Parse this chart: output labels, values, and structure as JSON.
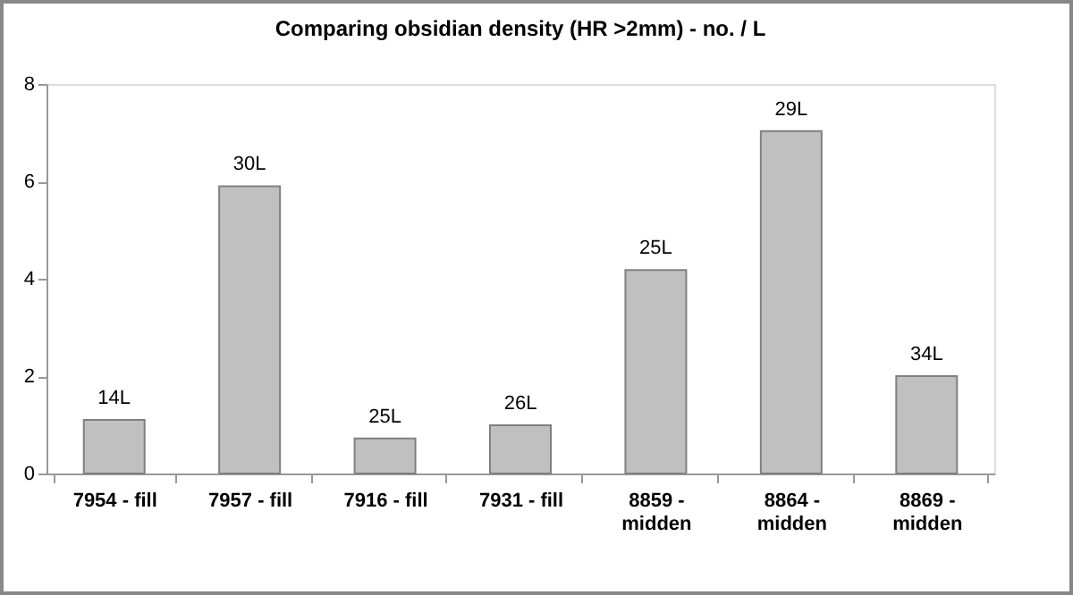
{
  "chart_data": {
    "type": "bar",
    "title": "Comparing obsidian density (HR >2mm) - no. / L",
    "categories": [
      "7954 - fill",
      "7957 - fill",
      "7916 - fill",
      "7931 - fill",
      "8859 - midden",
      "8864 - midden",
      "8869 - midden"
    ],
    "values": [
      1.1,
      5.9,
      0.72,
      0.99,
      4.18,
      7.03,
      2.0
    ],
    "annotations": [
      {
        "text": "14L",
        "x": "7954 - fill",
        "y": 1.1
      },
      {
        "text": "30L",
        "x": "7957 - fill",
        "y": 5.9
      },
      {
        "text": "25L",
        "x": "7916 - fill",
        "y": 0.72
      },
      {
        "text": "26L",
        "x": "7931 - fill",
        "y": 0.99
      },
      {
        "text": "25L",
        "x": "8859 - midden",
        "y": 4.18
      },
      {
        "text": "29L",
        "x": "8864 - midden",
        "y": 7.03
      },
      {
        "text": "34L",
        "x": "8869 - midden",
        "y": 2.0
      }
    ],
    "color": "#c0c0c0",
    "ylim": [
      0,
      8
    ],
    "yticks": [
      0,
      2,
      4,
      6,
      8
    ],
    "grid": false
  }
}
